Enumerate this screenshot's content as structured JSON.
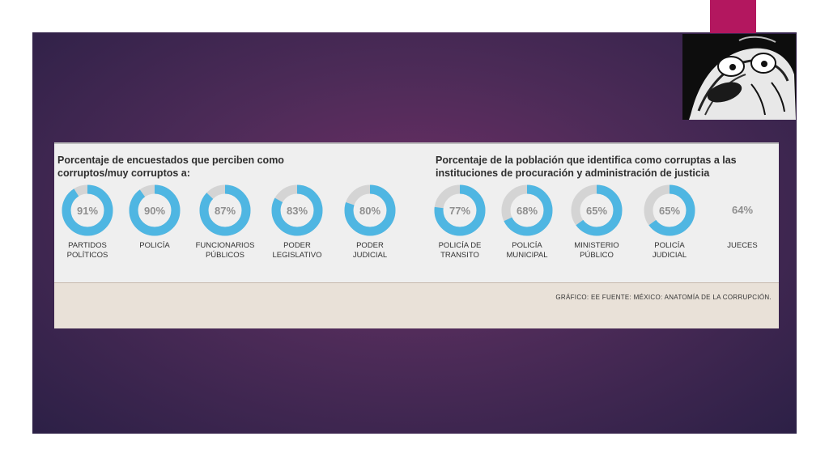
{
  "chart_data": [
    {
      "type": "pie",
      "title": "Porcentaje de encuestados que perciben como corruptos/muy corruptos a:",
      "categories": [
        "PARTIDOS POLÍTICOS",
        "POLICÍA",
        "FUNCIONARIOS PÚBLICOS",
        "PODER LEGISLATIVO",
        "PODER JUDICIAL"
      ],
      "values": [
        91,
        90,
        87,
        83,
        80
      ],
      "ring_color": "#4fb6e2",
      "rest_color": "#d4d4d4"
    },
    {
      "type": "pie",
      "title": "Porcentaje de la población que identifica como corruptas a las instituciones de procuración y administración de justicia",
      "categories": [
        "POLICÍA DE TRANSITO",
        "POLICÍA MUNICIPAL",
        "MINISTERIO PÚBLICO",
        "POLICÍA JUDICIAL",
        "JUECES"
      ],
      "values": [
        77,
        68,
        65,
        65,
        64
      ],
      "ring_color": "#4fb6e2",
      "rest_color": "#d4d4d4"
    }
  ],
  "left": {
    "title_line1": "Porcentaje de encuestados que perciben como",
    "title_line2": "corruptos/muy corruptos a:",
    "items": [
      {
        "l1": "PARTIDOS",
        "l2": "POLÍTICOS",
        "pct": "91%"
      },
      {
        "l1": "POLICÍA",
        "l2": "",
        "pct": "90%"
      },
      {
        "l1": "FUNCIONARIOS",
        "l2": "PÚBLICOS",
        "pct": "87%"
      },
      {
        "l1": "PODER",
        "l2": "LEGISLATIVO",
        "pct": "83%"
      },
      {
        "l1": "PODER",
        "l2": "JUDICIAL",
        "pct": "80%"
      }
    ]
  },
  "right": {
    "title_line1": "Porcentaje de la población que identifica como corruptas a las",
    "title_line2": "instituciones de procuración y administración de justicia",
    "items": [
      {
        "l1": "POLICÍA DE",
        "l2": "TRANSITO",
        "pct": "77%"
      },
      {
        "l1": "POLICÍA",
        "l2": "MUNICIPAL",
        "pct": "68%"
      },
      {
        "l1": "MINISTERIO",
        "l2": "PÚBLICO",
        "pct": "65%"
      },
      {
        "l1": "POLICÍA",
        "l2": "JUDICIAL",
        "pct": "65%"
      },
      {
        "l1": "JUECES",
        "l2": "",
        "pct": "64%"
      }
    ]
  },
  "source": "GRÁFICO: EE FUENTE: MÉXICO: ANATOMÍA DE LA CORRUPCIÓN."
}
